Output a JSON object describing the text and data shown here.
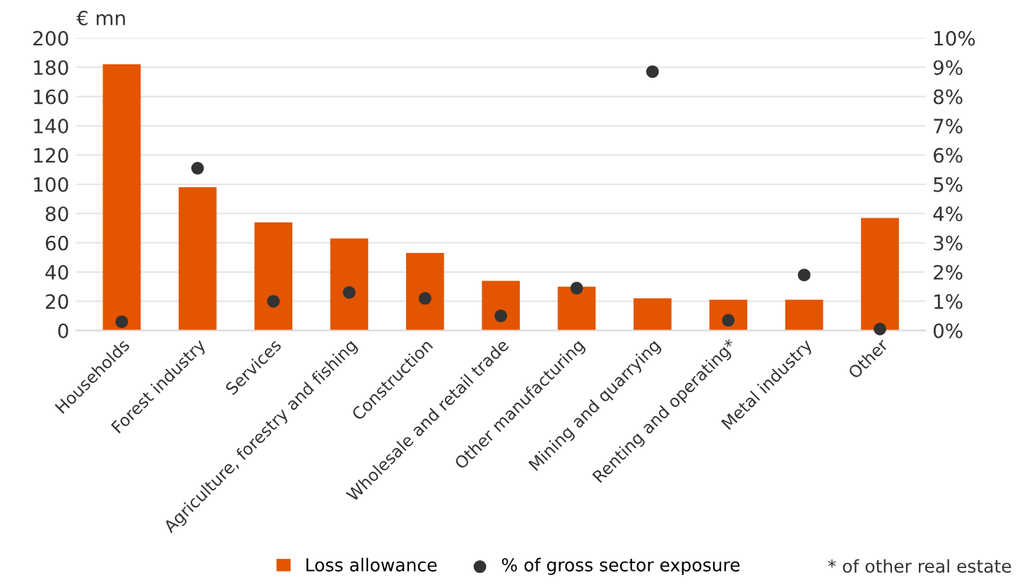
{
  "chart_data": {
    "type": "bar",
    "ylabel": "€ mn",
    "categories": [
      "Households",
      "Forest industry",
      "Services",
      "Agriculture, forestry and fishing",
      "Construction",
      "Wholesale and retail trade",
      "Other manufacturing",
      "Mining and quarrying",
      "Renting and operating*",
      "Metal industry",
      "Other"
    ],
    "series": [
      {
        "name": "Loss allowance",
        "color": "#e35500",
        "values": [
          182,
          98,
          74,
          63,
          53,
          34,
          30,
          22,
          21,
          21,
          77
        ]
      },
      {
        "name": "% of gross sector exposure",
        "type": "scatter",
        "axis": "y2",
        "color": "#333333",
        "values": [
          0.3,
          5.55,
          1.0,
          1.3,
          1.1,
          0.5,
          1.45,
          8.85,
          0.35,
          1.9,
          0.05
        ]
      }
    ],
    "ylim": [
      0,
      200
    ],
    "yticks": [
      0,
      20,
      40,
      60,
      80,
      100,
      120,
      140,
      160,
      180,
      200
    ],
    "y2lim": [
      0,
      10
    ],
    "y2ticks": [
      {
        "value": 0,
        "label": "0%"
      },
      {
        "value": 1,
        "label": "1%"
      },
      {
        "value": 2,
        "label": "2%"
      },
      {
        "value": 3,
        "label": "3%"
      },
      {
        "value": 4,
        "label": "4%"
      },
      {
        "value": 5,
        "label": "5%"
      },
      {
        "value": 6,
        "label": "6%"
      },
      {
        "value": 7,
        "label": "7%"
      },
      {
        "value": 8,
        "label": "8%"
      },
      {
        "value": 9,
        "label": "9%"
      },
      {
        "value": 10,
        "label": "10%"
      }
    ],
    "grid": "y",
    "legend": "bottom",
    "marker": "circle",
    "annotations": [
      "* of other real estate"
    ]
  }
}
